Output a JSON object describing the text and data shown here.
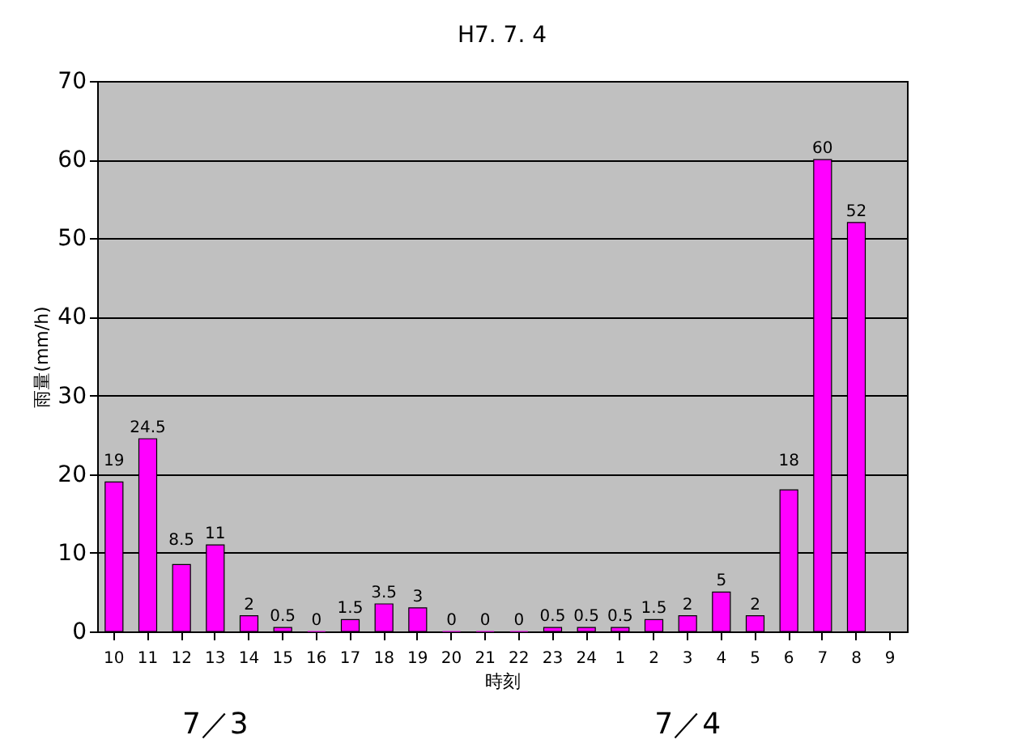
{
  "chart_data": {
    "type": "bar",
    "title": "H7. 7. 4",
    "xlabel": "時刻",
    "ylabel": "雨量(mm/h)",
    "categories": [
      "10",
      "11",
      "12",
      "13",
      "14",
      "15",
      "16",
      "17",
      "18",
      "19",
      "20",
      "21",
      "22",
      "23",
      "24",
      "1",
      "2",
      "3",
      "4",
      "5",
      "6",
      "7",
      "8",
      "9"
    ],
    "values": [
      19,
      24.5,
      8.5,
      11,
      2,
      0.5,
      0,
      1.5,
      3.5,
      3,
      0,
      0,
      0,
      0.5,
      0.5,
      0.5,
      1.5,
      2,
      5,
      2,
      18,
      60,
      52,
      null
    ],
    "value_labels": [
      "19",
      "24.5",
      "8.5",
      "11",
      "2",
      "0.5",
      "0",
      "1.5",
      "3.5",
      "3",
      "0",
      "0",
      "0",
      "0.5",
      "0.5",
      "0.5",
      "1.5",
      "2",
      "5",
      "2",
      "18",
      "60",
      "52",
      null
    ],
    "color": "#ff00ff",
    "ylim": [
      0,
      70
    ],
    "yticks": [
      0,
      10,
      20,
      30,
      40,
      50,
      60,
      70
    ],
    "grid": "y",
    "annotations": [
      "7／3",
      "7／4"
    ]
  }
}
